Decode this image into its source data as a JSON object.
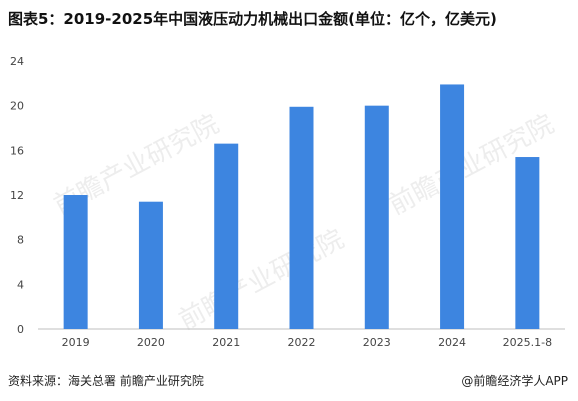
{
  "title": "图表5：2019-2025年中国液压动力机械出口金额(单位：亿个，亿美元)",
  "source": "资料来源：海关总署 前瞻产业研究院",
  "credit": "@前瞻经济学人APP",
  "watermark": "前瞻产业研究院",
  "colors": {
    "bar": "#3d85e0",
    "grid": "#e6e6e6",
    "axis": "#bfbfbf"
  },
  "chart_data": {
    "type": "bar",
    "categories": [
      "2019",
      "2020",
      "2021",
      "2022",
      "2023",
      "2024",
      "2025.1-8"
    ],
    "values": [
      12.0,
      11.4,
      16.6,
      19.9,
      20.0,
      21.9,
      15.4
    ],
    "ylim": [
      0,
      24
    ],
    "yticks": [
      0,
      4,
      8,
      12,
      16,
      20,
      24
    ],
    "grid": false,
    "legend": "none"
  }
}
